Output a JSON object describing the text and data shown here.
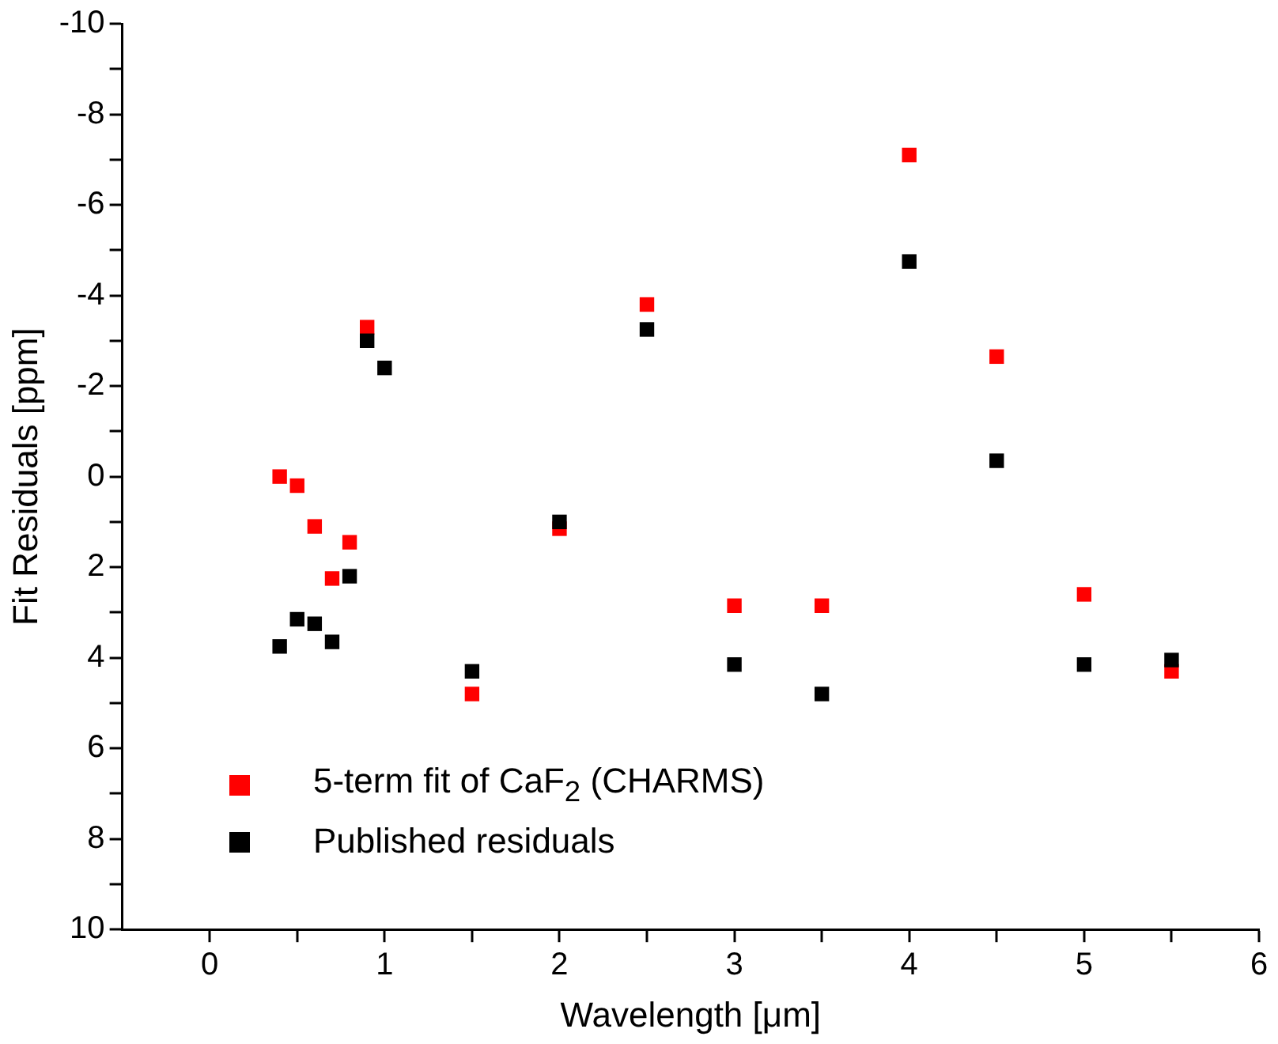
{
  "chart_data": {
    "type": "scatter",
    "xlabel": "Wavelength [μm]",
    "ylabel": "Fit Residuals [ppm]",
    "xlim": [
      -0.5,
      6
    ],
    "xticks": [
      0,
      {
        "value": 0.5,
        "label": null
      },
      1,
      {
        "value": 1.5,
        "label": null
      },
      2,
      {
        "value": 2.5,
        "label": null
      },
      3,
      {
        "value": 3.5,
        "label": null
      },
      4,
      {
        "value": 4.5,
        "label": null
      },
      5,
      {
        "value": 5.5,
        "label": null
      },
      6
    ],
    "ylim": [
      10,
      -10
    ],
    "yticks": [
      -10,
      {
        "value": -9,
        "label": null
      },
      -8,
      {
        "value": -7,
        "label": null
      },
      -6,
      {
        "value": -5,
        "label": null
      },
      -4,
      {
        "value": -3,
        "label": null
      },
      -2,
      {
        "value": -1,
        "label": null
      },
      0,
      {
        "value": 1,
        "label": null
      },
      2,
      {
        "value": 3,
        "label": null
      },
      4,
      {
        "value": 5,
        "label": null
      },
      6,
      {
        "value": 7,
        "label": null
      },
      8,
      {
        "value": 9,
        "label": null
      },
      10
    ],
    "marker": "square",
    "legend": "bottom left",
    "grid": false,
    "series": [
      {
        "name": "5-term fit of CaF$_{2}$ (CHARMS)",
        "color": "#ff0000",
        "x": [
          0.4,
          0.5,
          0.6,
          0.7,
          0.8,
          0.9,
          1.5,
          2.0,
          2.5,
          3.0,
          3.5,
          4.0,
          4.5,
          5.0,
          5.5
        ],
        "values": [
          0,
          0.2,
          1.1,
          2.25,
          1.45,
          -3.3,
          4.8,
          1.15,
          -3.8,
          2.85,
          2.85,
          -7.1,
          -2.65,
          2.6,
          4.3
        ]
      },
      {
        "name": "Published residuals",
        "color": "#000000",
        "x": [
          0.4,
          0.5,
          0.6,
          0.7,
          0.8,
          0.9,
          1.0,
          1.5,
          2.0,
          2.5,
          3.0,
          3.5,
          4.0,
          4.5,
          5.0,
          5.5
        ],
        "values": [
          3.75,
          3.15,
          3.25,
          3.65,
          2.2,
          -3.0,
          -2.4,
          4.3,
          1.0,
          -3.25,
          4.15,
          4.8,
          -4.75,
          -0.35,
          4.15,
          4.05
        ]
      }
    ]
  }
}
